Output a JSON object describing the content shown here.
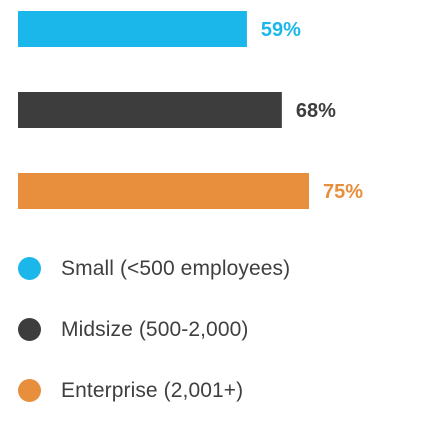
{
  "chart_data": {
    "type": "bar",
    "orientation": "horizontal",
    "categories": [
      "Small (<500 employees)",
      "Midsize (500-2,000)",
      "Enterprise (2,001+)"
    ],
    "values": [
      59,
      68,
      75
    ],
    "value_labels": [
      "59%",
      "68%",
      "75%"
    ],
    "colors": [
      "#1cb7ea",
      "#3d3d3d",
      "#e88f3d"
    ],
    "xlim": [
      0,
      100
    ],
    "title": "",
    "xlabel": "",
    "ylabel": "",
    "grid": false,
    "legend_position": "bottom"
  },
  "legend": {
    "items": [
      {
        "label": "Small (<500 employees)",
        "color": "#1cb7ea"
      },
      {
        "label": "Midsize (500-2,000)",
        "color": "#3d3d3d"
      },
      {
        "label": "Enterprise (2,001+)",
        "color": "#e88f3d"
      }
    ]
  }
}
